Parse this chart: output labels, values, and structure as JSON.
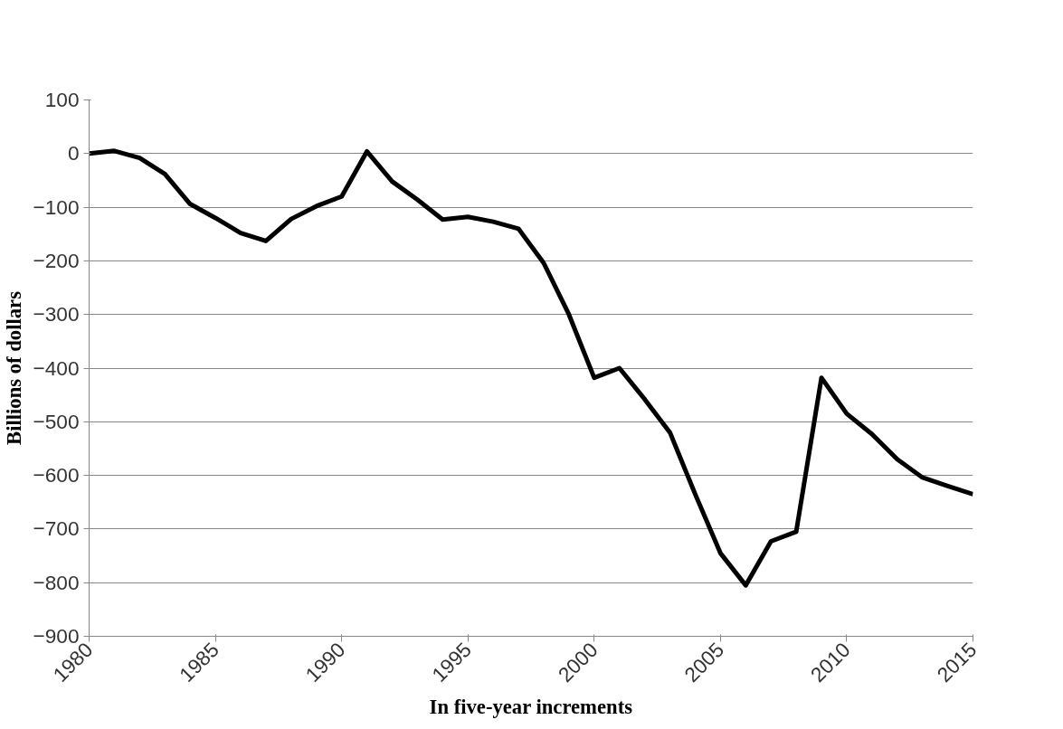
{
  "chart_data": {
    "type": "line",
    "xlabel": "In five-year increments",
    "ylabel": "Billions of dollars",
    "x": [
      1980,
      1981,
      1982,
      1983,
      1984,
      1985,
      1986,
      1987,
      1988,
      1989,
      1990,
      1991,
      1992,
      1993,
      1994,
      1995,
      1996,
      1997,
      1998,
      1999,
      2000,
      2001,
      2002,
      2003,
      2004,
      2005,
      2006,
      2007,
      2008,
      2009,
      2010,
      2011,
      2012,
      2013,
      2014,
      2015
    ],
    "series": [
      {
        "color": "#000000",
        "values": [
          0,
          5,
          -8,
          -38,
          -94,
          -120,
          -148,
          -163,
          -122,
          -98,
          -80,
          4,
          -52,
          -86,
          -123,
          -118,
          -127,
          -140,
          -204,
          -300,
          -418,
          -400,
          -458,
          -520,
          -635,
          -745,
          -805,
          -723,
          -705,
          -418,
          -485,
          -523,
          -570,
          -604,
          -620,
          -635
        ]
      }
    ],
    "xlim": [
      1980,
      2015
    ],
    "xticks": [
      1980,
      1985,
      1990,
      1995,
      2000,
      2005,
      2010,
      2015
    ],
    "ylim": [
      -900,
      100
    ],
    "yticks": [
      -900,
      -800,
      -700,
      -600,
      -500,
      -400,
      -300,
      -200,
      -100,
      0,
      100
    ],
    "grid": "y",
    "marker": "none",
    "line_style": "solid"
  }
}
